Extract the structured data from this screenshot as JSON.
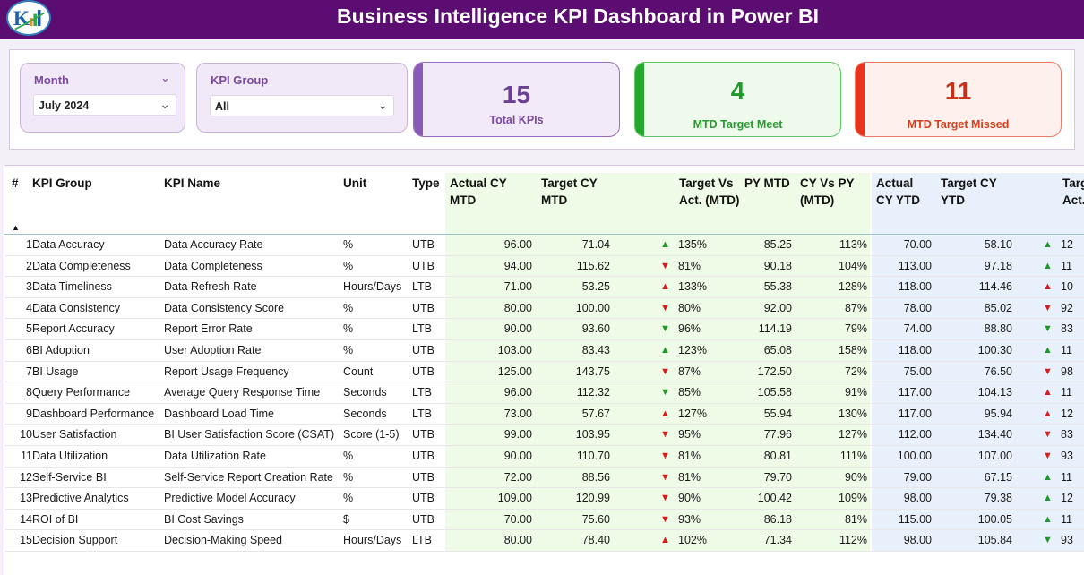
{
  "header": {
    "title": "Business Intelligence KPI Dashboard in Power BI"
  },
  "filters": {
    "month": {
      "label": "Month",
      "value": "July 2024"
    },
    "kpi_group": {
      "label": "KPI Group",
      "value": "All"
    }
  },
  "cards": {
    "total": {
      "value": "15",
      "label": "Total KPIs"
    },
    "meet": {
      "value": "4",
      "label": "MTD Target Meet"
    },
    "missed": {
      "value": "11",
      "label": "MTD Target Missed"
    }
  },
  "colors": {
    "title_bar": "#5b0d72",
    "purple_accent": "#8a5bb5",
    "green_accent": "#22a82a",
    "red_accent": "#e8341c",
    "mtd_band": "#eefbe6",
    "ytd_band": "#e8f0fb",
    "up_arrow": "#1f9a2a",
    "down_arrow": "#d81b1b"
  },
  "icons": {
    "up": "triangle-up-icon",
    "down": "triangle-down-icon",
    "sort": "sort-ascending-icon"
  },
  "table": {
    "columns": {
      "num": "#",
      "group": "KPI Group",
      "name": "KPI Name",
      "unit": "Unit",
      "type": "Type",
      "actual_mtd": "Actual CY MTD",
      "target_mtd": "Target CY MTD",
      "tva_mtd": "Target Vs Act. (MTD)",
      "py_mtd": "PY MTD",
      "cyvspy_mtd": "CY Vs PY (MTD)",
      "actual_ytd": "Actual CY YTD",
      "target_ytd": "Target CY YTD",
      "tva_ytd": "Target Vs Act. (YTD)"
    },
    "rows": [
      {
        "num": "1",
        "group": "Data Accuracy",
        "name": "Data Accuracy Rate",
        "unit": "%",
        "type": "UTB",
        "actual_mtd": "96.00",
        "target_mtd": "71.04",
        "mtd_dir": "up",
        "tva_mtd": "135%",
        "py_mtd": "85.25",
        "cyvspy": "113%",
        "actual_ytd": "70.00",
        "target_ytd": "58.10",
        "ytd_dir": "up",
        "tva_ytd": "12"
      },
      {
        "num": "2",
        "group": "Data Completeness",
        "name": "Data Completeness",
        "unit": "%",
        "type": "UTB",
        "actual_mtd": "94.00",
        "target_mtd": "115.62",
        "mtd_dir": "down",
        "tva_mtd": "81%",
        "py_mtd": "90.18",
        "cyvspy": "104%",
        "actual_ytd": "113.00",
        "target_ytd": "97.18",
        "ytd_dir": "up",
        "tva_ytd": "11"
      },
      {
        "num": "3",
        "group": "Data Timeliness",
        "name": "Data Refresh Rate",
        "unit": "Hours/Days",
        "type": "LTB",
        "actual_mtd": "71.00",
        "target_mtd": "53.25",
        "mtd_dir": "up-red",
        "tva_mtd": "133%",
        "py_mtd": "55.38",
        "cyvspy": "128%",
        "actual_ytd": "118.00",
        "target_ytd": "114.46",
        "ytd_dir": "up-red",
        "tva_ytd": "10"
      },
      {
        "num": "4",
        "group": "Data Consistency",
        "name": "Data Consistency Score",
        "unit": "%",
        "type": "UTB",
        "actual_mtd": "80.00",
        "target_mtd": "100.00",
        "mtd_dir": "down",
        "tva_mtd": "80%",
        "py_mtd": "92.00",
        "cyvspy": "87%",
        "actual_ytd": "78.00",
        "target_ytd": "85.02",
        "ytd_dir": "down",
        "tva_ytd": "92"
      },
      {
        "num": "5",
        "group": "Report Accuracy",
        "name": "Report Error Rate",
        "unit": "%",
        "type": "LTB",
        "actual_mtd": "90.00",
        "target_mtd": "93.60",
        "mtd_dir": "down-green",
        "tva_mtd": "96%",
        "py_mtd": "114.19",
        "cyvspy": "79%",
        "actual_ytd": "74.00",
        "target_ytd": "88.80",
        "ytd_dir": "down-green",
        "tva_ytd": "83"
      },
      {
        "num": "6",
        "group": "BI Adoption",
        "name": "User Adoption Rate",
        "unit": "%",
        "type": "UTB",
        "actual_mtd": "103.00",
        "target_mtd": "83.43",
        "mtd_dir": "up",
        "tva_mtd": "123%",
        "py_mtd": "65.08",
        "cyvspy": "158%",
        "actual_ytd": "118.00",
        "target_ytd": "100.30",
        "ytd_dir": "up",
        "tva_ytd": "11"
      },
      {
        "num": "7",
        "group": "BI Usage",
        "name": "Report Usage Frequency",
        "unit": "Count",
        "type": "UTB",
        "actual_mtd": "125.00",
        "target_mtd": "143.75",
        "mtd_dir": "down",
        "tva_mtd": "87%",
        "py_mtd": "172.50",
        "cyvspy": "72%",
        "actual_ytd": "75.00",
        "target_ytd": "76.50",
        "ytd_dir": "down",
        "tva_ytd": "98"
      },
      {
        "num": "8",
        "group": "Query Performance",
        "name": "Average Query Response Time",
        "unit": "Seconds",
        "type": "LTB",
        "actual_mtd": "96.00",
        "target_mtd": "112.32",
        "mtd_dir": "down-green",
        "tva_mtd": "85%",
        "py_mtd": "105.58",
        "cyvspy": "91%",
        "actual_ytd": "117.00",
        "target_ytd": "104.13",
        "ytd_dir": "up-red",
        "tva_ytd": "11"
      },
      {
        "num": "9",
        "group": "Dashboard Performance",
        "name": "Dashboard Load Time",
        "unit": "Seconds",
        "type": "LTB",
        "actual_mtd": "73.00",
        "target_mtd": "57.67",
        "mtd_dir": "up-red",
        "tva_mtd": "127%",
        "py_mtd": "55.94",
        "cyvspy": "130%",
        "actual_ytd": "117.00",
        "target_ytd": "95.94",
        "ytd_dir": "up-red",
        "tva_ytd": "12"
      },
      {
        "num": "10",
        "group": "User Satisfaction",
        "name": "BI User Satisfaction Score (CSAT)",
        "unit": "Score (1-5)",
        "type": "UTB",
        "actual_mtd": "99.00",
        "target_mtd": "103.95",
        "mtd_dir": "down",
        "tva_mtd": "95%",
        "py_mtd": "77.96",
        "cyvspy": "127%",
        "actual_ytd": "112.00",
        "target_ytd": "134.40",
        "ytd_dir": "down",
        "tva_ytd": "83"
      },
      {
        "num": "11",
        "group": "Data Utilization",
        "name": "Data Utilization Rate",
        "unit": "%",
        "type": "UTB",
        "actual_mtd": "90.00",
        "target_mtd": "110.70",
        "mtd_dir": "down",
        "tva_mtd": "81%",
        "py_mtd": "80.81",
        "cyvspy": "111%",
        "actual_ytd": "100.00",
        "target_ytd": "107.00",
        "ytd_dir": "down",
        "tva_ytd": "93"
      },
      {
        "num": "12",
        "group": "Self-Service BI",
        "name": "Self-Service Report Creation Rate",
        "unit": "%",
        "type": "UTB",
        "actual_mtd": "72.00",
        "target_mtd": "88.56",
        "mtd_dir": "down",
        "tva_mtd": "81%",
        "py_mtd": "79.70",
        "cyvspy": "90%",
        "actual_ytd": "79.00",
        "target_ytd": "67.15",
        "ytd_dir": "up",
        "tva_ytd": "11"
      },
      {
        "num": "13",
        "group": "Predictive Analytics",
        "name": "Predictive Model Accuracy",
        "unit": "%",
        "type": "UTB",
        "actual_mtd": "109.00",
        "target_mtd": "120.99",
        "mtd_dir": "down",
        "tva_mtd": "90%",
        "py_mtd": "100.42",
        "cyvspy": "109%",
        "actual_ytd": "98.00",
        "target_ytd": "79.38",
        "ytd_dir": "up",
        "tva_ytd": "12"
      },
      {
        "num": "14",
        "group": "ROI of BI",
        "name": "BI Cost Savings",
        "unit": "$",
        "type": "UTB",
        "actual_mtd": "70.00",
        "target_mtd": "75.60",
        "mtd_dir": "down",
        "tva_mtd": "93%",
        "py_mtd": "86.18",
        "cyvspy": "81%",
        "actual_ytd": "115.00",
        "target_ytd": "100.05",
        "ytd_dir": "up",
        "tva_ytd": "11"
      },
      {
        "num": "15",
        "group": "Decision Support",
        "name": "Decision-Making Speed",
        "unit": "Hours/Days",
        "type": "LTB",
        "actual_mtd": "80.00",
        "target_mtd": "78.40",
        "mtd_dir": "up-red",
        "tva_mtd": "102%",
        "py_mtd": "71.34",
        "cyvspy": "112%",
        "actual_ytd": "98.00",
        "target_ytd": "105.84",
        "ytd_dir": "down-green",
        "tva_ytd": "93"
      }
    ]
  }
}
